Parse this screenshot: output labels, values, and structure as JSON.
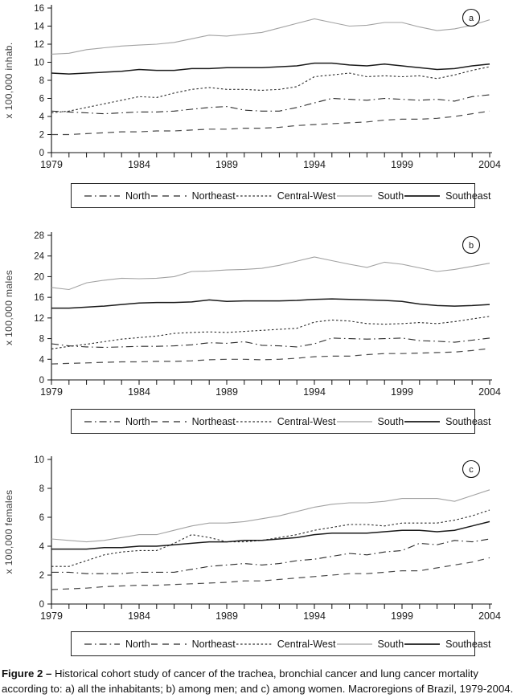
{
  "figure": {
    "caption_label": "Figure 2 –",
    "caption_text": " Historical cohort study of cancer of the trachea, bronchial cancer and lung cancer mortality according to: a) all the inhabitants; b) among men; and c) among women. Macroregions of Brazil, 1979-2004."
  },
  "colors": {
    "axis": "#111111",
    "line_black": "#1a1a1a",
    "line_dark": "#2a2a2a",
    "line_gray_south": "#a2a2a2",
    "northeast_gray": "#4a4a4a"
  },
  "legend": [
    {
      "name": "North",
      "style": "dashdot"
    },
    {
      "name": "Northeast",
      "style": "longdash"
    },
    {
      "name": "Central-West",
      "style": "dot"
    },
    {
      "name": "South",
      "style": "solid-gray"
    },
    {
      "name": "Southeast",
      "style": "solid-black"
    }
  ],
  "chart_data": [
    {
      "id": "a",
      "type": "line",
      "label_badge": "a",
      "ylabel": "x 100,000 inhab.",
      "ylim": [
        0,
        16
      ],
      "ytick_step": 2,
      "xtick_labels": [
        1979,
        1984,
        1989,
        1994,
        1999,
        2004
      ],
      "x": [
        1979,
        1980,
        1981,
        1982,
        1983,
        1984,
        1985,
        1986,
        1987,
        1988,
        1989,
        1990,
        1991,
        1992,
        1993,
        1994,
        1995,
        1996,
        1997,
        1998,
        1999,
        2000,
        2001,
        2002,
        2003,
        2004
      ],
      "series": [
        {
          "name": "North",
          "style": "dashdot",
          "values": [
            4.6,
            4.5,
            4.4,
            4.3,
            4.4,
            4.5,
            4.5,
            4.6,
            4.8,
            5.0,
            5.1,
            4.7,
            4.6,
            4.6,
            5.0,
            5.5,
            6.0,
            5.9,
            5.8,
            6.0,
            5.9,
            5.8,
            5.9,
            5.7,
            6.2,
            6.4
          ]
        },
        {
          "name": "Northeast",
          "style": "longdash",
          "values": [
            2.0,
            2.0,
            2.1,
            2.2,
            2.3,
            2.3,
            2.4,
            2.4,
            2.5,
            2.6,
            2.6,
            2.7,
            2.7,
            2.8,
            3.0,
            3.1,
            3.2,
            3.3,
            3.4,
            3.6,
            3.7,
            3.7,
            3.8,
            4.0,
            4.3,
            4.6
          ]
        },
        {
          "name": "Central-West",
          "style": "dot",
          "values": [
            4.4,
            4.6,
            5.0,
            5.4,
            5.8,
            6.2,
            6.1,
            6.6,
            7.0,
            7.2,
            7.0,
            7.0,
            6.9,
            7.0,
            7.3,
            8.4,
            8.6,
            8.8,
            8.4,
            8.5,
            8.4,
            8.5,
            8.2,
            8.6,
            9.1,
            9.5
          ]
        },
        {
          "name": "South",
          "style": "solid-gray",
          "values": [
            10.9,
            11.0,
            11.4,
            11.6,
            11.8,
            11.9,
            12.0,
            12.2,
            12.6,
            13.0,
            12.9,
            13.1,
            13.3,
            13.8,
            14.3,
            14.8,
            14.4,
            14.0,
            14.1,
            14.4,
            14.4,
            13.9,
            13.5,
            13.7,
            14.1,
            14.7
          ]
        },
        {
          "name": "Southeast",
          "style": "solid-black",
          "values": [
            8.8,
            8.7,
            8.8,
            8.9,
            9.0,
            9.2,
            9.1,
            9.1,
            9.3,
            9.3,
            9.4,
            9.4,
            9.4,
            9.5,
            9.6,
            9.9,
            9.9,
            9.7,
            9.6,
            9.8,
            9.6,
            9.4,
            9.2,
            9.3,
            9.6,
            9.8
          ]
        }
      ]
    },
    {
      "id": "b",
      "type": "line",
      "label_badge": "b",
      "ylabel": "x 100,000 males",
      "ylim": [
        0,
        28
      ],
      "ytick_step": 4,
      "xtick_labels": [
        1979,
        1984,
        1989,
        1994,
        1999,
        2004
      ],
      "x": [
        1979,
        1980,
        1981,
        1982,
        1983,
        1984,
        1985,
        1986,
        1987,
        1988,
        1989,
        1990,
        1991,
        1992,
        1993,
        1994,
        1995,
        1996,
        1997,
        1998,
        1999,
        2000,
        2001,
        2002,
        2003,
        2004
      ],
      "series": [
        {
          "name": "North",
          "style": "dashdot",
          "values": [
            7.0,
            6.6,
            6.4,
            6.3,
            6.4,
            6.5,
            6.5,
            6.6,
            6.8,
            7.2,
            7.1,
            7.4,
            6.7,
            6.6,
            6.4,
            7.0,
            8.1,
            8.0,
            7.9,
            8.0,
            8.1,
            7.6,
            7.5,
            7.3,
            7.7,
            8.1
          ]
        },
        {
          "name": "Northeast",
          "style": "longdash",
          "values": [
            3.1,
            3.2,
            3.3,
            3.4,
            3.5,
            3.5,
            3.6,
            3.6,
            3.7,
            3.9,
            4.0,
            4.0,
            3.9,
            4.0,
            4.2,
            4.5,
            4.6,
            4.6,
            4.9,
            5.1,
            5.1,
            5.2,
            5.3,
            5.4,
            5.7,
            6.1
          ]
        },
        {
          "name": "Central-West",
          "style": "dot",
          "values": [
            6.0,
            6.5,
            6.9,
            7.4,
            7.9,
            8.2,
            8.5,
            9.0,
            9.2,
            9.3,
            9.2,
            9.4,
            9.6,
            9.8,
            10.0,
            11.2,
            11.6,
            11.4,
            10.9,
            10.8,
            10.9,
            11.1,
            10.9,
            11.3,
            11.8,
            12.3
          ]
        },
        {
          "name": "South",
          "style": "solid-gray",
          "values": [
            17.9,
            17.5,
            18.8,
            19.3,
            19.7,
            19.6,
            19.7,
            20.0,
            21.0,
            21.1,
            21.3,
            21.4,
            21.6,
            22.2,
            23.0,
            23.8,
            23.1,
            22.4,
            21.8,
            22.8,
            22.4,
            21.7,
            21.0,
            21.4,
            22.0,
            22.6
          ]
        },
        {
          "name": "Southeast",
          "style": "solid-black",
          "values": [
            13.9,
            13.9,
            14.1,
            14.3,
            14.6,
            14.9,
            15.0,
            15.0,
            15.1,
            15.5,
            15.2,
            15.3,
            15.3,
            15.3,
            15.4,
            15.6,
            15.7,
            15.6,
            15.5,
            15.4,
            15.2,
            14.7,
            14.4,
            14.3,
            14.4,
            14.6
          ]
        }
      ]
    },
    {
      "id": "c",
      "type": "line",
      "label_badge": "c",
      "ylabel": "x 100,000 females",
      "ylim": [
        0,
        10
      ],
      "ytick_step": 2,
      "xtick_labels": [
        1979,
        1984,
        1989,
        1994,
        1999,
        2004
      ],
      "x": [
        1979,
        1980,
        1981,
        1982,
        1983,
        1984,
        1985,
        1986,
        1987,
        1988,
        1989,
        1990,
        1991,
        1992,
        1993,
        1994,
        1995,
        1996,
        1997,
        1998,
        1999,
        2000,
        2001,
        2002,
        2003,
        2004
      ],
      "series": [
        {
          "name": "North",
          "style": "dashdot",
          "values": [
            2.2,
            2.2,
            2.1,
            2.1,
            2.1,
            2.2,
            2.2,
            2.2,
            2.4,
            2.6,
            2.7,
            2.8,
            2.7,
            2.8,
            3.0,
            3.1,
            3.3,
            3.5,
            3.4,
            3.6,
            3.7,
            4.2,
            4.1,
            4.4,
            4.3,
            4.5
          ]
        },
        {
          "name": "Northeast",
          "style": "longdash",
          "values": [
            1.0,
            1.05,
            1.1,
            1.2,
            1.25,
            1.3,
            1.3,
            1.35,
            1.4,
            1.45,
            1.5,
            1.6,
            1.6,
            1.7,
            1.8,
            1.9,
            2.0,
            2.1,
            2.1,
            2.2,
            2.3,
            2.3,
            2.5,
            2.7,
            2.9,
            3.2
          ]
        },
        {
          "name": "Central-West",
          "style": "dot",
          "values": [
            2.6,
            2.6,
            3.0,
            3.4,
            3.6,
            3.7,
            3.7,
            4.2,
            4.8,
            4.6,
            4.3,
            4.3,
            4.4,
            4.6,
            4.8,
            5.1,
            5.3,
            5.5,
            5.5,
            5.4,
            5.6,
            5.6,
            5.6,
            5.8,
            6.1,
            6.5
          ]
        },
        {
          "name": "South",
          "style": "solid-gray",
          "values": [
            4.5,
            4.4,
            4.3,
            4.4,
            4.6,
            4.8,
            4.8,
            5.1,
            5.4,
            5.6,
            5.6,
            5.7,
            5.9,
            6.1,
            6.4,
            6.7,
            6.9,
            7.0,
            7.0,
            7.1,
            7.3,
            7.3,
            7.3,
            7.1,
            7.5,
            7.9
          ]
        },
        {
          "name": "Southeast",
          "style": "solid-black",
          "values": [
            3.8,
            3.8,
            3.8,
            3.9,
            3.9,
            4.0,
            4.0,
            4.1,
            4.2,
            4.3,
            4.3,
            4.4,
            4.4,
            4.5,
            4.6,
            4.8,
            4.9,
            4.9,
            4.9,
            5.0,
            5.1,
            5.1,
            5.0,
            5.1,
            5.4,
            5.7
          ]
        }
      ]
    }
  ]
}
